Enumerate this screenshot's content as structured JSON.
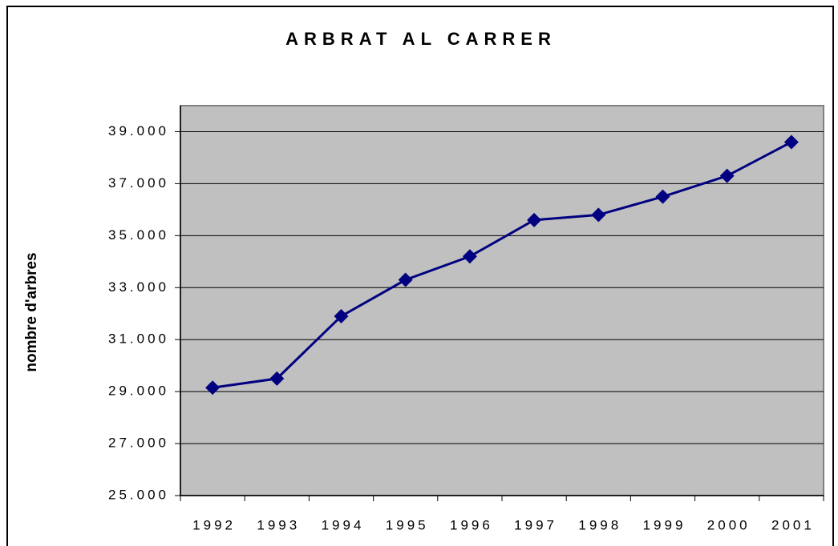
{
  "chart_data": {
    "type": "line",
    "title": "ARBRAT AL CARRER",
    "y_label": "nombre d'arbres",
    "categories": [
      "1992",
      "1993",
      "1994",
      "1995",
      "1996",
      "1997",
      "1998",
      "1999",
      "2000",
      "2001"
    ],
    "series": [
      {
        "name": "nombre d'arbres",
        "color": "#000080",
        "values": [
          29150,
          29500,
          31900,
          33300,
          34200,
          35600,
          35800,
          36500,
          37300,
          38600
        ]
      }
    ],
    "ylim": [
      25000,
      40000
    ],
    "yticks": [
      {
        "value": 25000,
        "label": "25.000"
      },
      {
        "value": 27000,
        "label": "27.000"
      },
      {
        "value": 29000,
        "label": "29.000"
      },
      {
        "value": 31000,
        "label": "31.000"
      },
      {
        "value": 33000,
        "label": "33.000"
      },
      {
        "value": 35000,
        "label": "35.000"
      },
      {
        "value": 37000,
        "label": "37.000"
      },
      {
        "value": 39000,
        "label": "39.000"
      }
    ],
    "grid": true,
    "plot_background": "#c0c0c0"
  }
}
